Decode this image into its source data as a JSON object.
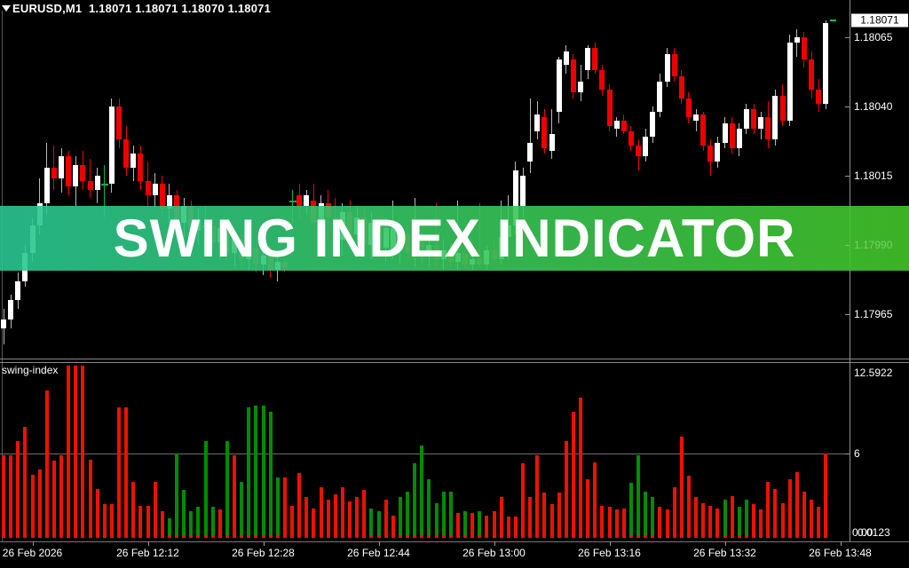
{
  "header": {
    "symbol": "EURUSD,M1",
    "ohlc_values": "1.18071 1.18071 1.18070 1.18071"
  },
  "banner": {
    "text": "SWING INDEX INDICATOR",
    "color_left": "#2ac693",
    "color_right": "#42c628",
    "ghost_price_label": "1.17990"
  },
  "colors": {
    "background": "#000000",
    "candle_up": "#ffffff",
    "candle_down": "#ee0000",
    "doji": "#00b44c",
    "hist_up": "#008c00",
    "hist_down": "#ee1100",
    "axis_text": "#ffffff"
  },
  "price_axis": {
    "current_price": "1.18071",
    "ticks": [
      {
        "value": 1.18065,
        "label": "1.18065"
      },
      {
        "value": 1.1804,
        "label": "1.18040"
      },
      {
        "value": 1.18015,
        "label": "1.18015"
      },
      {
        "value": 1.17965,
        "label": "1.17965"
      }
    ],
    "hidden_tick": {
      "value": 1.1799,
      "label": "1.17990"
    }
  },
  "indicator": {
    "name": "swing-index",
    "axis": {
      "max_label": "12.5922",
      "mid_label": "6",
      "min_label": "0.0123",
      "min_overlap_label": "0.00"
    }
  },
  "time_axis": {
    "labels": [
      "26 Feb 2026",
      "26 Feb 12:12",
      "26 Feb 12:28",
      "26 Feb 12:44",
      "26 Feb 13:00",
      "26 Feb 13:16",
      "26 Feb 13:32",
      "26 Feb 13:48"
    ]
  },
  "chart_data": [
    {
      "type": "candlestick",
      "title": "EURUSD,M1",
      "ylabel": "price",
      "ylim": [
        1.1795,
        1.18075
      ],
      "grid": false,
      "price_base": 1.179,
      "point": 1e-05,
      "note": "candles as [open,high,low,close,type] in points above 1.17900; type w=up(white) r=down(red) g=doji(green)",
      "candles": [
        [
          60,
          67,
          54,
          63,
          "w"
        ],
        [
          63,
          72,
          60,
          70,
          "w"
        ],
        [
          70,
          80,
          67,
          77,
          "w"
        ],
        [
          77,
          90,
          75,
          87,
          "w"
        ],
        [
          87,
          100,
          84,
          97,
          "w"
        ],
        [
          97,
          114,
          94,
          105,
          "w"
        ],
        [
          105,
          127,
          101,
          118,
          "w"
        ],
        [
          118,
          126,
          110,
          114,
          "r"
        ],
        [
          114,
          125,
          109,
          122,
          "w"
        ],
        [
          122,
          124,
          108,
          111,
          "r"
        ],
        [
          111,
          122,
          104,
          119,
          "w"
        ],
        [
          119,
          124,
          110,
          113,
          "r"
        ],
        [
          113,
          121,
          107,
          110,
          "r"
        ],
        [
          110,
          118,
          105,
          115,
          "w"
        ],
        [
          112,
          119,
          100,
          112,
          "g"
        ],
        [
          112,
          143,
          109,
          140,
          "w"
        ],
        [
          140,
          143,
          125,
          128,
          "r"
        ],
        [
          128,
          133,
          115,
          118,
          "r"
        ],
        [
          118,
          126,
          113,
          123,
          "w"
        ],
        [
          123,
          126,
          110,
          113,
          "r"
        ],
        [
          113,
          120,
          104,
          108,
          "r"
        ],
        [
          108,
          116,
          103,
          112,
          "w"
        ],
        [
          112,
          115,
          100,
          103,
          "r"
        ],
        [
          103,
          112,
          98,
          108,
          "w"
        ],
        [
          108,
          110,
          95,
          98,
          "r"
        ],
        [
          98,
          107,
          93,
          104,
          "w"
        ],
        [
          104,
          106,
          92,
          95,
          "r"
        ],
        [
          95,
          103,
          90,
          99,
          "w"
        ],
        [
          97,
          104,
          87,
          97,
          "g"
        ],
        [
          97,
          100,
          88,
          91,
          "r"
        ],
        [
          91,
          99,
          85,
          96,
          "w"
        ],
        [
          96,
          98,
          84,
          87,
          "r"
        ],
        [
          87,
          95,
          82,
          92,
          "w"
        ],
        [
          92,
          94,
          82,
          85,
          "r"
        ],
        [
          85,
          92,
          81,
          89,
          "w"
        ],
        [
          89,
          91,
          80,
          83,
          "r"
        ],
        [
          83,
          89,
          79,
          86,
          "w"
        ],
        [
          86,
          88,
          78,
          81,
          "r"
        ],
        [
          81,
          86,
          77,
          84,
          "w"
        ],
        [
          84,
          85,
          80,
          82,
          "r"
        ],
        [
          106,
          110,
          98,
          106,
          "g"
        ],
        [
          108,
          112,
          99,
          104,
          "r"
        ],
        [
          104,
          110,
          101,
          108,
          "w"
        ],
        [
          106,
          112,
          95,
          98,
          "r"
        ],
        [
          98,
          108,
          90,
          105,
          "w"
        ],
        [
          105,
          110,
          92,
          100,
          "r"
        ],
        [
          100,
          107,
          88,
          92,
          "r"
        ],
        [
          92,
          105,
          86,
          102,
          "w"
        ],
        [
          102,
          106,
          90,
          94,
          "r"
        ],
        [
          94,
          104,
          88,
          100,
          "w"
        ],
        [
          100,
          103,
          87,
          90,
          "r"
        ],
        [
          90,
          102,
          85,
          98,
          "w"
        ],
        [
          98,
          101,
          86,
          89,
          "r"
        ],
        [
          89,
          100,
          84,
          96,
          "w"
        ],
        [
          88,
          106,
          85,
          96,
          "w"
        ],
        [
          88,
          98,
          83,
          94,
          "w"
        ],
        [
          94,
          97,
          84,
          87,
          "r"
        ],
        [
          87,
          107,
          82,
          92,
          "w"
        ],
        [
          92,
          95,
          83,
          86,
          "r"
        ],
        [
          86,
          94,
          82,
          90,
          "w"
        ],
        [
          90,
          105,
          82,
          85,
          "r"
        ],
        [
          85,
          92,
          81,
          88,
          "w"
        ],
        [
          88,
          91,
          82,
          84,
          "r"
        ],
        [
          84,
          106,
          81,
          87,
          "w"
        ],
        [
          87,
          89,
          82,
          83,
          "r"
        ],
        [
          83,
          88,
          81,
          85,
          "w"
        ],
        [
          85,
          105,
          82,
          83,
          "r"
        ],
        [
          83,
          90,
          81,
          88,
          "w"
        ],
        [
          88,
          92,
          83,
          85,
          "r"
        ],
        [
          85,
          106,
          83,
          93,
          "w"
        ],
        [
          93,
          108,
          85,
          97,
          "w"
        ],
        [
          97,
          120,
          94,
          117,
          "w"
        ],
        [
          104,
          118,
          100,
          115,
          "w"
        ],
        [
          120,
          143,
          116,
          127,
          "w"
        ],
        [
          131,
          142,
          128,
          137,
          "w"
        ],
        [
          136,
          139,
          123,
          125,
          "r"
        ],
        [
          124,
          139,
          121,
          130,
          "w"
        ],
        [
          138,
          158,
          134,
          157,
          "w"
        ],
        [
          155,
          162,
          152,
          160,
          "w"
        ],
        [
          157,
          159,
          143,
          145,
          "r"
        ],
        [
          145,
          155,
          142,
          149,
          "w"
        ],
        [
          153,
          162,
          150,
          161,
          "w"
        ],
        [
          161,
          163,
          152,
          153,
          "r"
        ],
        [
          153,
          155,
          144,
          146,
          "r"
        ],
        [
          146,
          148,
          131,
          133,
          "r"
        ],
        [
          132,
          136,
          129,
          135,
          "w"
        ],
        [
          135,
          137,
          130,
          131,
          "r"
        ],
        [
          131,
          133,
          124,
          126,
          "r"
        ],
        [
          126,
          128,
          117,
          122,
          "r"
        ],
        [
          122,
          132,
          120,
          129,
          "w"
        ],
        [
          129,
          140,
          127,
          138,
          "w"
        ],
        [
          138,
          152,
          136,
          149,
          "w"
        ],
        [
          149,
          161,
          147,
          159,
          "w"
        ],
        [
          159,
          161,
          149,
          151,
          "r"
        ],
        [
          151,
          153,
          141,
          143,
          "r"
        ],
        [
          143,
          145,
          134,
          136,
          "r"
        ],
        [
          135,
          139,
          131,
          137,
          "w"
        ],
        [
          137,
          138,
          124,
          126,
          "r"
        ],
        [
          126,
          128,
          115,
          120,
          "r"
        ],
        [
          120,
          129,
          118,
          127,
          "w"
        ],
        [
          127,
          136,
          125,
          134,
          "w"
        ],
        [
          134,
          136,
          123,
          125,
          "r"
        ],
        [
          125,
          134,
          122,
          132,
          "w"
        ],
        [
          132,
          141,
          130,
          139,
          "w"
        ],
        [
          139,
          141,
          130,
          132,
          "r"
        ],
        [
          132,
          138,
          128,
          136,
          "w"
        ],
        [
          136,
          142,
          125,
          128,
          "r"
        ],
        [
          128,
          146,
          126,
          144,
          "w"
        ],
        [
          144,
          148,
          133,
          135,
          "r"
        ],
        [
          135,
          166,
          133,
          163,
          "w"
        ],
        [
          163,
          168,
          158,
          165,
          "w"
        ],
        [
          165,
          167,
          154,
          157,
          "r"
        ],
        [
          157,
          160,
          143,
          146,
          "r"
        ],
        [
          146,
          150,
          138,
          141,
          "r"
        ],
        [
          141,
          171,
          139,
          170,
          "w"
        ]
      ]
    },
    {
      "type": "bar",
      "title": "swing-index",
      "ylim": [
        0.0123,
        12.5922
      ],
      "gridline": 6,
      "legend_position": "none",
      "note": "values as [height, d=down(red)/u=up(green)] aligned with candle timestamps",
      "values": [
        [
          5.9,
          "d"
        ],
        [
          5.9,
          "d"
        ],
        [
          6.9,
          "d"
        ],
        [
          7.9,
          "d"
        ],
        [
          4.5,
          "d"
        ],
        [
          4.9,
          "d"
        ],
        [
          10.5,
          "d"
        ],
        [
          5.5,
          "d"
        ],
        [
          5.9,
          "d"
        ],
        [
          12.3,
          "d"
        ],
        [
          12.3,
          "d"
        ],
        [
          12.3,
          "d"
        ],
        [
          5.6,
          "d"
        ],
        [
          3.5,
          "d"
        ],
        [
          2.4,
          "d"
        ],
        [
          2.4,
          "d"
        ],
        [
          9.3,
          "d"
        ],
        [
          9.3,
          "d"
        ],
        [
          4.0,
          "d"
        ],
        [
          2.3,
          "d"
        ],
        [
          2.3,
          "d"
        ],
        [
          4.0,
          "d"
        ],
        [
          1.9,
          "d"
        ],
        [
          1.4,
          "u"
        ],
        [
          6.0,
          "u"
        ],
        [
          3.4,
          "u"
        ],
        [
          1.9,
          "u"
        ],
        [
          2.2,
          "u"
        ],
        [
          6.9,
          "u"
        ],
        [
          2.2,
          "u"
        ],
        [
          2.0,
          "d"
        ],
        [
          6.9,
          "u"
        ],
        [
          5.9,
          "d"
        ],
        [
          4.0,
          "u"
        ],
        [
          9.3,
          "u"
        ],
        [
          9.4,
          "u"
        ],
        [
          9.4,
          "u"
        ],
        [
          9.0,
          "u"
        ],
        [
          4.3,
          "u"
        ],
        [
          4.3,
          "d"
        ],
        [
          2.3,
          "d"
        ],
        [
          4.6,
          "d"
        ],
        [
          2.9,
          "d"
        ],
        [
          2.1,
          "d"
        ],
        [
          3.6,
          "d"
        ],
        [
          2.7,
          "d"
        ],
        [
          3.1,
          "d"
        ],
        [
          3.6,
          "d"
        ],
        [
          2.6,
          "d"
        ],
        [
          2.9,
          "d"
        ],
        [
          3.4,
          "d"
        ],
        [
          2.1,
          "u"
        ],
        [
          1.9,
          "u"
        ],
        [
          2.7,
          "d"
        ],
        [
          1.6,
          "d"
        ],
        [
          2.9,
          "u"
        ],
        [
          3.3,
          "u"
        ],
        [
          5.3,
          "u"
        ],
        [
          6.6,
          "u"
        ],
        [
          4.2,
          "u"
        ],
        [
          2.5,
          "u"
        ],
        [
          3.3,
          "u"
        ],
        [
          3.3,
          "u"
        ],
        [
          1.8,
          "d"
        ],
        [
          1.9,
          "u"
        ],
        [
          1.8,
          "d"
        ],
        [
          1.9,
          "u"
        ],
        [
          1.6,
          "d"
        ],
        [
          1.9,
          "d"
        ],
        [
          2.9,
          "d"
        ],
        [
          1.5,
          "d"
        ],
        [
          1.5,
          "d"
        ],
        [
          5.3,
          "d"
        ],
        [
          2.9,
          "d"
        ],
        [
          5.9,
          "d"
        ],
        [
          3.2,
          "d"
        ],
        [
          2.4,
          "d"
        ],
        [
          3.2,
          "d"
        ],
        [
          6.9,
          "d"
        ],
        [
          9.0,
          "d"
        ],
        [
          10.0,
          "d"
        ],
        [
          4.2,
          "d"
        ],
        [
          5.4,
          "d"
        ],
        [
          2.3,
          "d"
        ],
        [
          2.2,
          "d"
        ],
        [
          2.0,
          "d"
        ],
        [
          2.1,
          "d"
        ],
        [
          3.9,
          "u"
        ],
        [
          5.9,
          "u"
        ],
        [
          3.3,
          "u"
        ],
        [
          2.9,
          "u"
        ],
        [
          2.2,
          "d"
        ],
        [
          2.0,
          "d"
        ],
        [
          3.6,
          "d"
        ],
        [
          7.2,
          "d"
        ],
        [
          4.4,
          "d"
        ],
        [
          2.9,
          "d"
        ],
        [
          2.5,
          "d"
        ],
        [
          2.3,
          "d"
        ],
        [
          2.1,
          "d"
        ],
        [
          2.7,
          "u"
        ],
        [
          3.0,
          "d"
        ],
        [
          2.2,
          "u"
        ],
        [
          2.7,
          "u"
        ],
        [
          2.4,
          "d"
        ],
        [
          2.0,
          "d"
        ],
        [
          4.0,
          "d"
        ],
        [
          3.5,
          "d"
        ],
        [
          2.5,
          "d"
        ],
        [
          4.2,
          "d"
        ],
        [
          4.7,
          "d"
        ],
        [
          3.3,
          "d"
        ],
        [
          2.7,
          "d"
        ],
        [
          2.2,
          "d"
        ],
        [
          6.0,
          "d"
        ]
      ]
    }
  ]
}
